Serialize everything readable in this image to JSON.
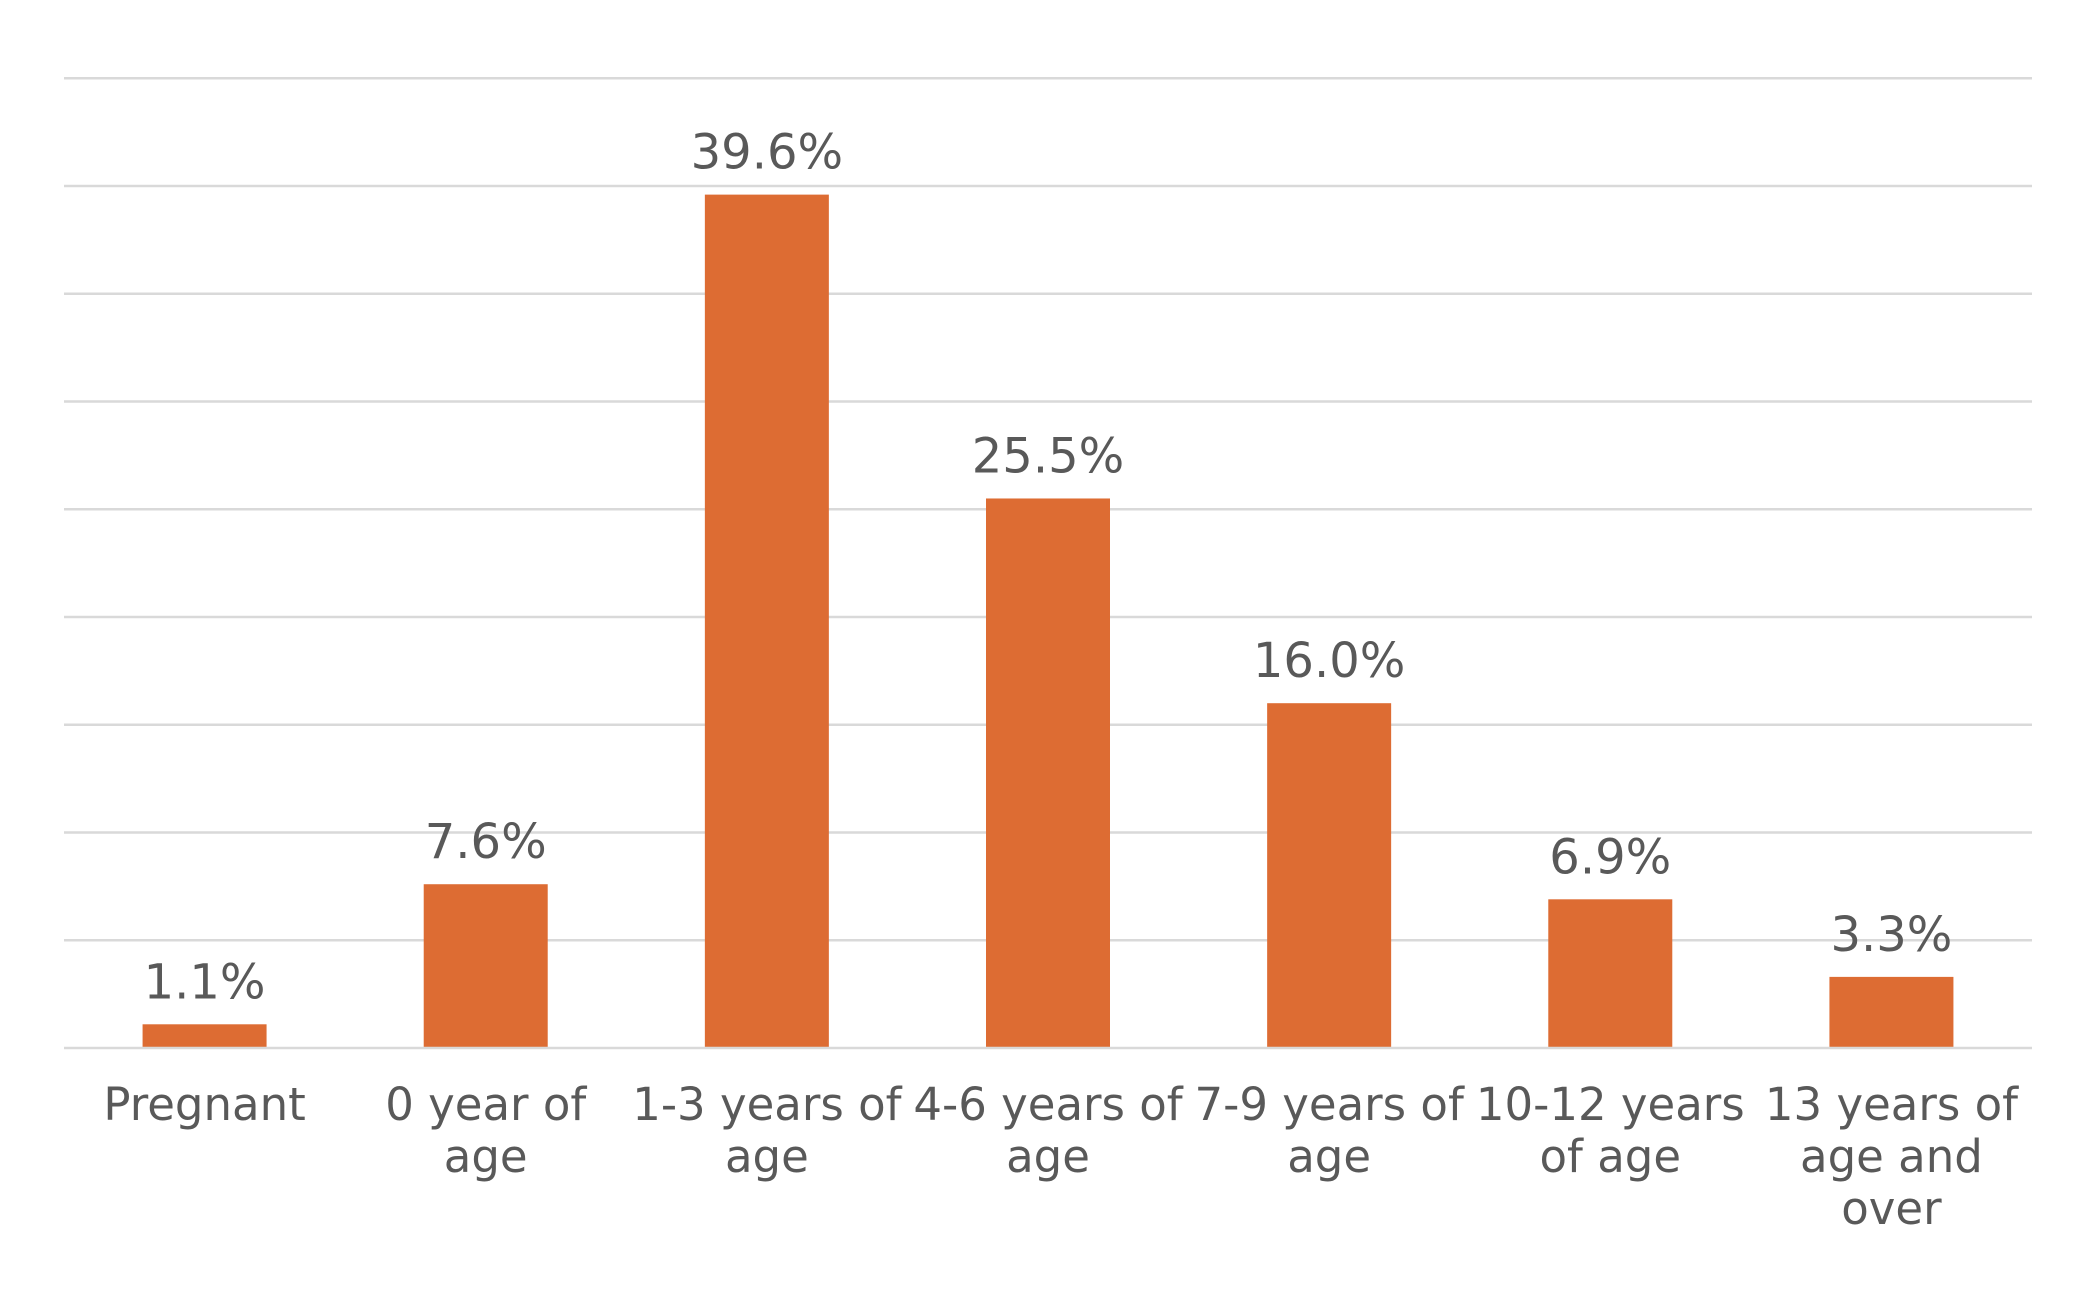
{
  "chart_data": {
    "type": "bar",
    "title": "",
    "xlabel": "",
    "ylabel": "",
    "categories": [
      [
        "Pregnant"
      ],
      [
        "0  year of",
        "age"
      ],
      [
        "1-3 years of",
        "age"
      ],
      [
        "4-6 years of",
        "age"
      ],
      [
        "7-9 years of",
        "age"
      ],
      [
        "10-12 years",
        "of age"
      ],
      [
        "13  years of",
        "age and",
        "over"
      ]
    ],
    "values": [
      1.1,
      7.6,
      39.6,
      25.5,
      16.0,
      6.9,
      3.3
    ],
    "data_labels": [
      "1.1%",
      "7.6%",
      "39.6%",
      "25.5%",
      "16.0%",
      "6.9%",
      "3.3%"
    ],
    "ylim": [
      0,
      45
    ],
    "gridlines": true,
    "gridline_step": 5,
    "legend": "none",
    "bar_color": "#dd6c33",
    "text_color": "#595959",
    "grid_color": "#d9d9d9"
  }
}
